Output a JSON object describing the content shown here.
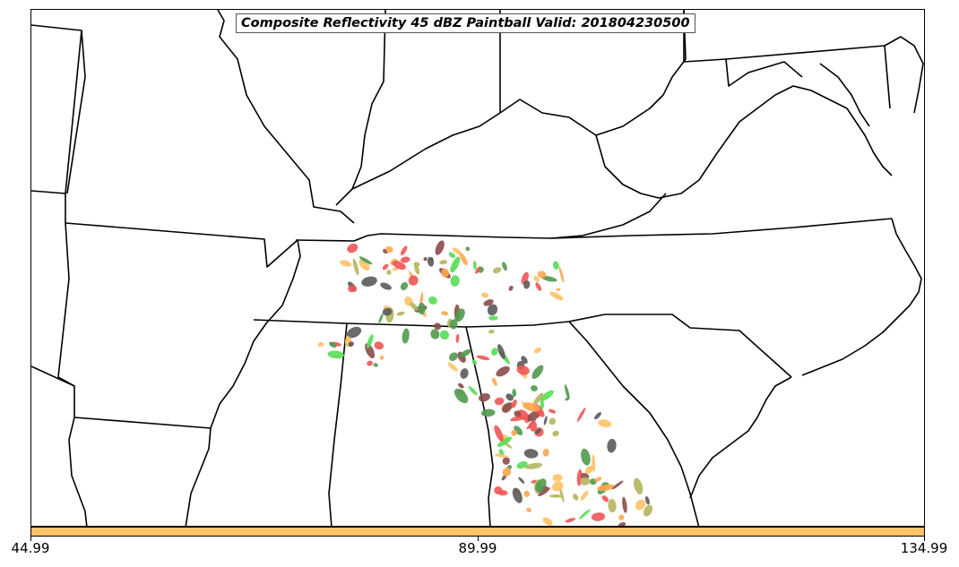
{
  "title": "Composite Reflectivity 45 dBZ Paintball Valid: 201804230500",
  "colorbar": {
    "color": "#ffc266",
    "ticks": [
      "44.99",
      "89.99",
      "134.99"
    ]
  },
  "colors": {
    "border": "#000000",
    "background": "#ffffff",
    "paintball": [
      "#4f9a4f",
      "#ef5555",
      "#ffa64d",
      "#55dd55",
      "#b5b560",
      "#8c4a4a",
      "#5a5a5a",
      "#ffc266"
    ]
  }
}
